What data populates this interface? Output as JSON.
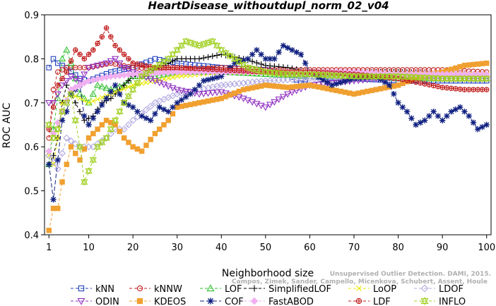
{
  "chart_data": {
    "type": "line",
    "title": "HeartDisease_withoutdupl_norm_02_v04",
    "xlabel": "Neighborhood size",
    "ylabel": "ROC AUC",
    "xlim": [
      0,
      101
    ],
    "ylim": [
      0.4,
      0.9
    ],
    "x_ticks": [
      1,
      10,
      20,
      30,
      40,
      50,
      60,
      70,
      80,
      90,
      100
    ],
    "y_ticks": [
      0.4,
      0.5,
      0.6,
      0.7,
      0.8,
      0.9
    ],
    "grid": false,
    "legend_position": "bottom",
    "credit": [
      "Unsupervised Outlier Detection. DAMI, 2015.",
      "Campos, Zimek, Sander, Campello, Micenkova, Schubert, Assent, Houle"
    ],
    "series": [
      {
        "name": "kNN",
        "color": "#1f3fbf",
        "marker": "square",
        "dash": "4,3",
        "knots": [
          [
            1,
            0.78
          ],
          [
            2,
            0.8
          ],
          [
            3,
            0.79
          ],
          [
            5,
            0.78
          ],
          [
            8,
            0.755
          ],
          [
            10,
            0.75
          ],
          [
            15,
            0.77
          ],
          [
            20,
            0.78
          ],
          [
            25,
            0.8
          ],
          [
            30,
            0.79
          ],
          [
            40,
            0.78
          ],
          [
            50,
            0.775
          ],
          [
            55,
            0.765
          ],
          [
            58,
            0.745
          ],
          [
            60,
            0.76
          ],
          [
            70,
            0.755
          ],
          [
            80,
            0.75
          ],
          [
            90,
            0.75
          ],
          [
            100,
            0.75
          ]
        ]
      },
      {
        "name": "kNNW",
        "color": "#c02020",
        "marker": "circle",
        "dash": "4,3",
        "knots": [
          [
            1,
            0.62
          ],
          [
            2,
            0.73
          ],
          [
            3,
            0.77
          ],
          [
            5,
            0.78
          ],
          [
            10,
            0.78
          ],
          [
            15,
            0.79
          ],
          [
            20,
            0.78
          ],
          [
            30,
            0.775
          ],
          [
            40,
            0.78
          ],
          [
            50,
            0.775
          ],
          [
            60,
            0.775
          ],
          [
            70,
            0.775
          ],
          [
            80,
            0.775
          ],
          [
            90,
            0.775
          ],
          [
            100,
            0.77
          ]
        ]
      },
      {
        "name": "LOF",
        "color": "#30c030",
        "marker": "triangle",
        "dash": "4,3",
        "knots": [
          [
            1,
            0.56
          ],
          [
            2,
            0.64
          ],
          [
            3,
            0.71
          ],
          [
            4,
            0.8
          ],
          [
            5,
            0.82
          ],
          [
            6,
            0.79
          ],
          [
            8,
            0.72
          ],
          [
            10,
            0.7
          ],
          [
            12,
            0.74
          ],
          [
            15,
            0.73
          ],
          [
            18,
            0.74
          ],
          [
            20,
            0.76
          ],
          [
            25,
            0.76
          ],
          [
            30,
            0.77
          ],
          [
            40,
            0.77
          ],
          [
            50,
            0.765
          ],
          [
            60,
            0.76
          ],
          [
            70,
            0.76
          ],
          [
            80,
            0.755
          ],
          [
            90,
            0.755
          ],
          [
            100,
            0.755
          ]
        ]
      },
      {
        "name": "SimplifiedLOF",
        "color": "#000000",
        "marker": "plus",
        "dash": "4,3",
        "knots": [
          [
            1,
            0.56
          ],
          [
            2,
            0.58
          ],
          [
            3,
            0.62
          ],
          [
            4,
            0.7
          ],
          [
            5,
            0.74
          ],
          [
            7,
            0.7
          ],
          [
            9,
            0.66
          ],
          [
            11,
            0.67
          ],
          [
            13,
            0.7
          ],
          [
            15,
            0.71
          ],
          [
            18,
            0.74
          ],
          [
            20,
            0.76
          ],
          [
            25,
            0.775
          ],
          [
            30,
            0.8
          ],
          [
            35,
            0.8
          ],
          [
            40,
            0.81
          ],
          [
            45,
            0.8
          ],
          [
            50,
            0.785
          ],
          [
            55,
            0.78
          ],
          [
            60,
            0.77
          ],
          [
            70,
            0.77
          ],
          [
            80,
            0.77
          ],
          [
            90,
            0.765
          ],
          [
            100,
            0.765
          ]
        ]
      },
      {
        "name": "LoOP",
        "color": "#e8e800",
        "marker": "x",
        "dash": "4,3",
        "knots": [
          [
            1,
            0.58
          ],
          [
            2,
            0.56
          ],
          [
            3,
            0.62
          ],
          [
            4,
            0.7
          ],
          [
            6,
            0.72
          ],
          [
            10,
            0.7
          ],
          [
            15,
            0.72
          ],
          [
            20,
            0.74
          ],
          [
            30,
            0.76
          ],
          [
            40,
            0.77
          ],
          [
            50,
            0.77
          ],
          [
            60,
            0.77
          ],
          [
            70,
            0.765
          ],
          [
            80,
            0.765
          ],
          [
            90,
            0.765
          ],
          [
            100,
            0.765
          ]
        ]
      },
      {
        "name": "LDOF",
        "color": "#b0a8e0",
        "marker": "diamond",
        "dash": "4,3",
        "knots": [
          [
            1,
            0.58
          ],
          [
            3,
            0.55
          ],
          [
            5,
            0.62
          ],
          [
            8,
            0.6
          ],
          [
            11,
            0.6
          ],
          [
            14,
            0.62
          ],
          [
            16,
            0.64
          ],
          [
            18,
            0.64
          ],
          [
            20,
            0.66
          ],
          [
            25,
            0.7
          ],
          [
            30,
            0.72
          ],
          [
            40,
            0.74
          ],
          [
            50,
            0.75
          ],
          [
            60,
            0.755
          ],
          [
            70,
            0.755
          ],
          [
            80,
            0.755
          ],
          [
            90,
            0.755
          ],
          [
            100,
            0.755
          ]
        ]
      },
      {
        "name": "ODIN",
        "color": "#9030c0",
        "marker": "triangledown",
        "dash": "4,3",
        "knots": [
          [
            1,
            0.7
          ],
          [
            2,
            0.7
          ],
          [
            4,
            0.74
          ],
          [
            6,
            0.76
          ],
          [
            8,
            0.75
          ],
          [
            10,
            0.78
          ],
          [
            14,
            0.79
          ],
          [
            16,
            0.8
          ],
          [
            18,
            0.78
          ],
          [
            20,
            0.77
          ],
          [
            25,
            0.75
          ],
          [
            30,
            0.73
          ],
          [
            35,
            0.72
          ],
          [
            40,
            0.725
          ],
          [
            45,
            0.71
          ],
          [
            50,
            0.69
          ],
          [
            55,
            0.72
          ],
          [
            60,
            0.74
          ],
          [
            65,
            0.745
          ],
          [
            70,
            0.75
          ],
          [
            80,
            0.76
          ],
          [
            90,
            0.755
          ],
          [
            100,
            0.755
          ]
        ]
      },
      {
        "name": "KDEOS",
        "color": "#f0a030",
        "marker": "squarefill",
        "dash": "4,3",
        "knots": [
          [
            1,
            0.41
          ],
          [
            2,
            0.46
          ],
          [
            3,
            0.46
          ],
          [
            4,
            0.52
          ],
          [
            5,
            0.56
          ],
          [
            6,
            0.6
          ],
          [
            8,
            0.57
          ],
          [
            10,
            0.62
          ],
          [
            12,
            0.64
          ],
          [
            14,
            0.66
          ],
          [
            16,
            0.65
          ],
          [
            18,
            0.62
          ],
          [
            20,
            0.6
          ],
          [
            22,
            0.59
          ],
          [
            25,
            0.63
          ],
          [
            28,
            0.66
          ],
          [
            30,
            0.69
          ],
          [
            35,
            0.7
          ],
          [
            40,
            0.71
          ],
          [
            45,
            0.73
          ],
          [
            50,
            0.74
          ],
          [
            55,
            0.735
          ],
          [
            60,
            0.74
          ],
          [
            65,
            0.73
          ],
          [
            70,
            0.72
          ],
          [
            75,
            0.73
          ],
          [
            80,
            0.74
          ],
          [
            85,
            0.76
          ],
          [
            90,
            0.77
          ],
          [
            95,
            0.785
          ],
          [
            100,
            0.79
          ]
        ]
      },
      {
        "name": "COF",
        "color": "#102080",
        "marker": "star",
        "dash": "6,3",
        "knots": [
          [
            1,
            0.56
          ],
          [
            2,
            0.48
          ],
          [
            3,
            0.57
          ],
          [
            4,
            0.66
          ],
          [
            5,
            0.68
          ],
          [
            6,
            0.72
          ],
          [
            8,
            0.74
          ],
          [
            9,
            0.67
          ],
          [
            10,
            0.65
          ],
          [
            12,
            0.68
          ],
          [
            14,
            0.71
          ],
          [
            16,
            0.74
          ],
          [
            18,
            0.7
          ],
          [
            20,
            0.69
          ],
          [
            22,
            0.67
          ],
          [
            24,
            0.66
          ],
          [
            26,
            0.69
          ],
          [
            28,
            0.68
          ],
          [
            30,
            0.7
          ],
          [
            33,
            0.72
          ],
          [
            36,
            0.75
          ],
          [
            40,
            0.76
          ],
          [
            43,
            0.79
          ],
          [
            46,
            0.8
          ],
          [
            48,
            0.82
          ],
          [
            50,
            0.8
          ],
          [
            52,
            0.8
          ],
          [
            54,
            0.83
          ],
          [
            56,
            0.82
          ],
          [
            58,
            0.81
          ],
          [
            60,
            0.77
          ],
          [
            65,
            0.74
          ],
          [
            70,
            0.755
          ],
          [
            75,
            0.76
          ],
          [
            78,
            0.74
          ],
          [
            80,
            0.7
          ],
          [
            82,
            0.68
          ],
          [
            84,
            0.65
          ],
          [
            86,
            0.66
          ],
          [
            88,
            0.68
          ],
          [
            90,
            0.66
          ],
          [
            92,
            0.68
          ],
          [
            94,
            0.69
          ],
          [
            96,
            0.67
          ],
          [
            98,
            0.64
          ],
          [
            100,
            0.65
          ]
        ]
      },
      {
        "name": "FastABOD",
        "color": "#f0b0f0",
        "marker": "diamondfill",
        "dash": "4,3",
        "knots": [
          [
            1,
            0.59
          ],
          [
            2,
            0.63
          ],
          [
            4,
            0.68
          ],
          [
            6,
            0.73
          ],
          [
            10,
            0.75
          ],
          [
            15,
            0.76
          ],
          [
            20,
            0.765
          ],
          [
            30,
            0.77
          ],
          [
            40,
            0.77
          ],
          [
            50,
            0.77
          ],
          [
            60,
            0.77
          ],
          [
            70,
            0.77
          ],
          [
            80,
            0.765
          ],
          [
            90,
            0.765
          ],
          [
            100,
            0.765
          ]
        ]
      },
      {
        "name": "LDF",
        "color": "#c01818",
        "marker": "circleplus",
        "dash": "4,3",
        "knots": [
          [
            1,
            0.64
          ],
          [
            3,
            0.74
          ],
          [
            5,
            0.77
          ],
          [
            7,
            0.82
          ],
          [
            9,
            0.8
          ],
          [
            11,
            0.82
          ],
          [
            13,
            0.85
          ],
          [
            14,
            0.87
          ],
          [
            16,
            0.83
          ],
          [
            18,
            0.81
          ],
          [
            20,
            0.79
          ],
          [
            25,
            0.78
          ],
          [
            30,
            0.78
          ],
          [
            40,
            0.775
          ],
          [
            50,
            0.77
          ],
          [
            60,
            0.77
          ],
          [
            70,
            0.765
          ],
          [
            75,
            0.76
          ],
          [
            80,
            0.755
          ],
          [
            85,
            0.745
          ],
          [
            90,
            0.735
          ],
          [
            95,
            0.73
          ],
          [
            100,
            0.73
          ]
        ]
      },
      {
        "name": "INFLO",
        "color": "#a0d020",
        "marker": "hexstar",
        "dash": "4,3",
        "knots": [
          [
            1,
            0.65
          ],
          [
            2,
            0.62
          ],
          [
            3,
            0.64
          ],
          [
            4,
            0.68
          ],
          [
            6,
            0.72
          ],
          [
            8,
            0.6
          ],
          [
            9,
            0.52
          ],
          [
            11,
            0.57
          ],
          [
            12,
            0.6
          ],
          [
            14,
            0.62
          ],
          [
            16,
            0.66
          ],
          [
            18,
            0.7
          ],
          [
            20,
            0.73
          ],
          [
            22,
            0.76
          ],
          [
            25,
            0.78
          ],
          [
            28,
            0.8
          ],
          [
            30,
            0.82
          ],
          [
            32,
            0.84
          ],
          [
            35,
            0.83
          ],
          [
            38,
            0.84
          ],
          [
            40,
            0.82
          ],
          [
            43,
            0.8
          ],
          [
            46,
            0.78
          ],
          [
            50,
            0.77
          ],
          [
            55,
            0.765
          ],
          [
            60,
            0.765
          ],
          [
            70,
            0.76
          ],
          [
            80,
            0.76
          ],
          [
            90,
            0.755
          ],
          [
            100,
            0.755
          ]
        ]
      }
    ]
  }
}
